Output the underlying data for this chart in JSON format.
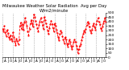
{
  "title": "Milwaukee Weather Solar Radiation  Avg per Day W/m2/minute",
  "title_fontsize": 3.8,
  "line_color": "#FF0000",
  "line_style": "--",
  "line_width": 0.6,
  "marker": ".",
  "marker_size": 1.2,
  "background_color": "#FFFFFF",
  "grid_color": "#888888",
  "ylim": [
    0,
    500
  ],
  "yticks": [
    0,
    50,
    100,
    150,
    200,
    250,
    300,
    350,
    400,
    450,
    500
  ],
  "ytick_fontsize": 3.2,
  "xtick_fontsize": 3.0,
  "values": [
    320,
    290,
    350,
    280,
    240,
    310,
    270,
    230,
    200,
    250,
    210,
    180,
    280,
    230,
    180,
    140,
    210,
    180,
    150,
    200,
    350,
    390,
    320,
    370,
    310,
    390,
    440,
    400,
    350,
    290,
    250,
    320,
    380,
    420,
    380,
    340,
    480,
    450,
    410,
    370,
    330,
    290,
    360,
    400,
    440,
    400,
    360,
    320,
    450,
    420,
    380,
    340,
    300,
    260,
    330,
    370,
    410,
    370,
    330,
    290,
    380,
    350,
    310,
    270,
    230,
    190,
    260,
    300,
    280,
    240,
    200,
    160,
    230,
    200,
    160,
    120,
    160,
    200,
    170,
    130,
    90,
    130,
    170,
    200,
    170,
    130,
    90,
    50,
    90,
    130,
    150,
    190,
    230,
    260,
    300,
    280,
    320,
    360,
    400,
    380,
    340,
    300,
    270,
    310,
    350,
    380,
    340,
    310,
    370,
    410,
    440,
    400,
    370,
    330,
    300,
    340,
    380,
    410,
    440,
    400
  ],
  "n_points": 120,
  "grid_interval": 12,
  "xtick_every": 3,
  "month_labels_cycle": [
    "J",
    "F",
    "M",
    "A",
    "M",
    "J",
    "J",
    "A",
    "S",
    "O",
    "N",
    "D"
  ]
}
